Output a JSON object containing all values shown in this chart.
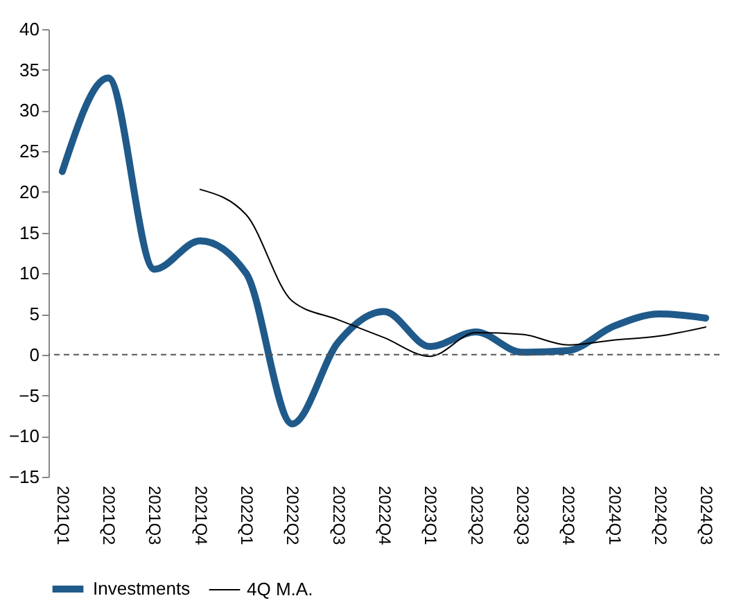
{
  "chart_data": {
    "type": "line",
    "categories": [
      "2021Q1",
      "2021Q2",
      "2021Q3",
      "2021Q4",
      "2022Q1",
      "2022Q2",
      "2022Q3",
      "2022Q4",
      "2023Q1",
      "2023Q2",
      "2023Q3",
      "2023Q4",
      "2024Q1",
      "2024Q2",
      "2024Q3"
    ],
    "series": [
      {
        "name": "Investments",
        "color": "#1f5a8a",
        "values": [
          22.5,
          34,
          10.5,
          14,
          10,
          -8.5,
          1.5,
          5.3,
          1,
          2.8,
          0.3,
          0.5,
          3.5,
          5,
          4.5
        ]
      },
      {
        "name": "4Q M.A.",
        "color": "#000000",
        "values": [
          null,
          null,
          null,
          20.3,
          17.2,
          6.6,
          4.3,
          2.1,
          -0.2,
          2.7,
          2.5,
          1.2,
          1.8,
          2.3,
          3.4
        ]
      }
    ],
    "ylim": [
      -15,
      40
    ],
    "yticks": [
      -15,
      -10,
      -5,
      0,
      5,
      10,
      15,
      20,
      25,
      30,
      35,
      40
    ],
    "ref_lines": [
      {
        "axis": "y",
        "value": 0,
        "color": "#555555",
        "line_style": "dashed"
      }
    ],
    "grid": false,
    "legend": "bottom"
  }
}
